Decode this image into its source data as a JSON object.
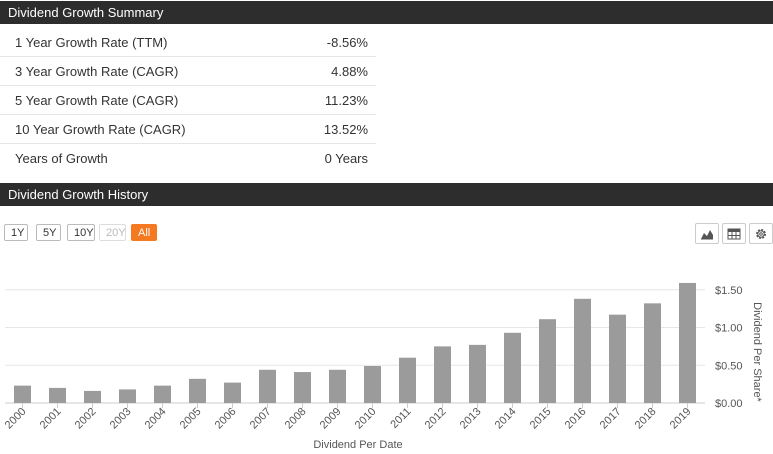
{
  "summary": {
    "header": "Dividend Growth Summary",
    "rows": [
      {
        "label": "1 Year Growth Rate (TTM)",
        "value": "-8.56%"
      },
      {
        "label": "3 Year Growth Rate (CAGR)",
        "value": "4.88%"
      },
      {
        "label": "5 Year Growth Rate (CAGR)",
        "value": "11.23%"
      },
      {
        "label": "10 Year Growth Rate (CAGR)",
        "value": "13.52%"
      },
      {
        "label": "Years of Growth",
        "value": "0 Years"
      }
    ]
  },
  "history": {
    "header": "Dividend Growth History",
    "range_buttons": [
      {
        "label": "1Y",
        "state": "normal"
      },
      {
        "label": "5Y",
        "state": "normal"
      },
      {
        "label": "10Y",
        "state": "normal"
      },
      {
        "label": "20Y",
        "state": "disabled"
      },
      {
        "label": "All",
        "state": "active"
      }
    ],
    "tools": [
      "area-chart-icon",
      "table-icon",
      "gear-icon"
    ]
  },
  "colors": {
    "header_bg": "#2d2d2d",
    "accent": "#f47920",
    "bar": "#9b9b9b",
    "grid": "#e6e6e6"
  },
  "chart_data": {
    "type": "bar",
    "categories": [
      "2000",
      "2001",
      "2002",
      "2003",
      "2004",
      "2005",
      "2006",
      "2007",
      "2008",
      "2009",
      "2010",
      "2011",
      "2012",
      "2013",
      "2014",
      "2015",
      "2016",
      "2017",
      "2018",
      "2019"
    ],
    "values": [
      0.23,
      0.2,
      0.16,
      0.18,
      0.23,
      0.32,
      0.27,
      0.44,
      0.41,
      0.44,
      0.49,
      0.6,
      0.75,
      0.77,
      0.93,
      1.11,
      1.38,
      1.17,
      1.32,
      1.59
    ],
    "xlabel": "Dividend Per Date",
    "ylabel": "Dividend Per Share*",
    "ylim": [
      0,
      1.5
    ],
    "yticks": [
      0,
      0.5,
      1.0,
      1.5
    ],
    "ytick_labels": [
      "$0.00",
      "$0.50",
      "$1.00",
      "$1.50"
    ],
    "axis_side": "right",
    "grid": true,
    "legend": "none"
  }
}
